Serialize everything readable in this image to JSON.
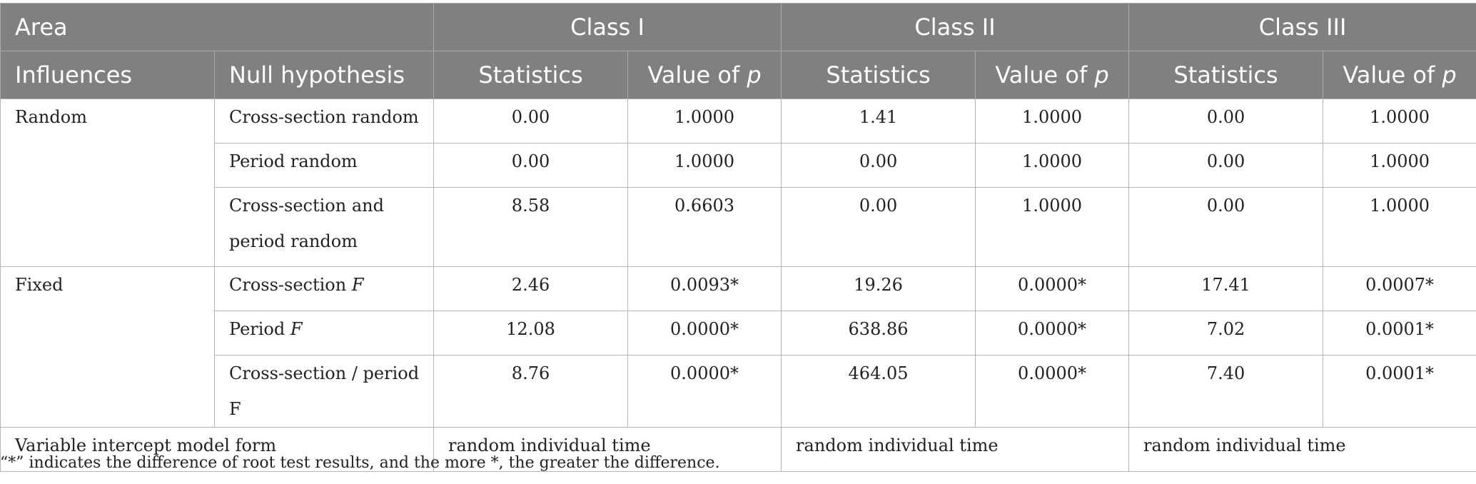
{
  "header": {
    "area": "Area",
    "class1": "Class I",
    "class2": "Class II",
    "class3": "Class III",
    "influences": "Influences",
    "null_hypothesis": "Null hypothesis",
    "statistics": "Statistics",
    "value_of": "Value of",
    "p": "p"
  },
  "rows": [
    {
      "influence": "Random",
      "null": "Cross-section random",
      "c1s": "0.00",
      "c1p": "1.0000",
      "c2s": "1.41",
      "c2p": "1.0000",
      "c3s": "0.00",
      "c3p": "1.0000"
    },
    {
      "influence": "",
      "null": "Period random",
      "c1s": "0.00",
      "c1p": "1.0000",
      "c2s": "0.00",
      "c2p": "1.0000",
      "c3s": "0.00",
      "c3p": "1.0000"
    },
    {
      "influence": "",
      "null": "Cross-section and period random",
      "c1s": "8.58",
      "c1p": "0.6603",
      "c2s": "0.00",
      "c2p": "1.0000",
      "c3s": "0.00",
      "c3p": "1.0000"
    },
    {
      "influence": "Fixed",
      "null_prefix": "Cross-section ",
      "null_f": "F",
      "c1s": "2.46",
      "c1p": "0.0093*",
      "c2s": "19.26",
      "c2p": "0.0000*",
      "c3s": "17.41",
      "c3p": "0.0007*"
    },
    {
      "influence": "",
      "null_prefix": "Period ",
      "null_f": "F",
      "c1s": "12.08",
      "c1p": "0.0000*",
      "c2s": "638.86",
      "c2p": "0.0000*",
      "c3s": "7.02",
      "c3p": "0.0001*"
    },
    {
      "influence": "",
      "null": "Cross-section / period F",
      "c1s": "8.76",
      "c1p": "0.0000*",
      "c2s": "464.05",
      "c2p": "0.0000*",
      "c3s": "7.40",
      "c3p": "0.0001*"
    }
  ],
  "model": {
    "label": "Variable intercept model form",
    "c1": "random individual time",
    "c2": "random individual time",
    "c3": "random individual time"
  },
  "note": "“*” indicates the difference of root test results, and the more *, the greater the difference."
}
